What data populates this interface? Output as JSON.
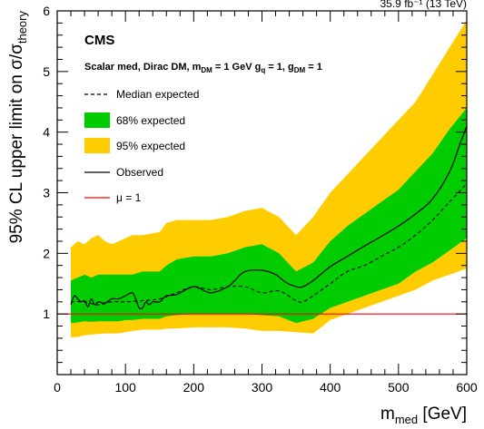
{
  "header_right": "35.9 fb⁻¹ (13 TeV)",
  "chart_data": {
    "type": "line",
    "title": "CMS",
    "subtitle": {
      "p1": "Scalar med, Dirac DM, m",
      "p1_sub": "DM",
      "p2": " = 1 GeV g",
      "p2_sub": "q",
      "p3": " = 1, g",
      "p3_sub": "DM",
      "p4": " = 1"
    },
    "xlabel": {
      "main": "m",
      "sub": "med",
      "unit": " [GeV]"
    },
    "ylabel": {
      "main": "95%  CL upper limit on σ/σ",
      "sub": "theory"
    },
    "xlim": [
      0,
      600
    ],
    "ylim": [
      0,
      6
    ],
    "xticks": [
      0,
      100,
      200,
      300,
      400,
      500,
      600
    ],
    "yticks": [
      1,
      2,
      3,
      4,
      5,
      6
    ],
    "grid": false,
    "legend_position": "top-left",
    "legend": [
      {
        "label": "Median expected",
        "style": "dashed-line"
      },
      {
        "label": "68% expected",
        "style": "fill",
        "color": "#00cc00"
      },
      {
        "label": "95% expected",
        "style": "fill",
        "color": "#ffcc00"
      },
      {
        "label": "Observed",
        "style": "solid-line"
      },
      {
        "label": "μ = 1",
        "style": "line",
        "color": "#ff0000"
      }
    ],
    "series": [
      {
        "name": "95% expected",
        "x": [
          20,
          30,
          40,
          50,
          60,
          70,
          80,
          90,
          100,
          110,
          125,
          150,
          160,
          175,
          200,
          225,
          250,
          275,
          300,
          325,
          350,
          375,
          400,
          425,
          450,
          475,
          500,
          525,
          550,
          575,
          600
        ],
        "lower": [
          0.62,
          0.62,
          0.65,
          0.66,
          0.67,
          0.68,
          0.68,
          0.68,
          0.7,
          0.72,
          0.74,
          0.74,
          0.76,
          0.76,
          0.78,
          0.78,
          0.78,
          0.76,
          0.72,
          0.72,
          0.7,
          0.68,
          0.9,
          1.0,
          1.1,
          1.2,
          1.3,
          1.4,
          1.55,
          1.65,
          1.75
        ],
        "upper": [
          2.1,
          2.2,
          2.15,
          2.25,
          2.3,
          2.2,
          2.15,
          2.2,
          2.25,
          2.3,
          2.3,
          2.35,
          2.5,
          2.55,
          2.55,
          2.55,
          2.6,
          2.7,
          2.75,
          2.6,
          2.3,
          2.6,
          3.0,
          3.3,
          3.6,
          3.9,
          4.2,
          4.5,
          4.95,
          5.4,
          5.85
        ]
      },
      {
        "name": "68% expected",
        "x": [
          20,
          30,
          40,
          50,
          60,
          70,
          80,
          90,
          100,
          110,
          125,
          150,
          160,
          175,
          200,
          225,
          250,
          275,
          300,
          325,
          350,
          375,
          400,
          425,
          450,
          475,
          500,
          525,
          550,
          575,
          600
        ],
        "lower": [
          0.85,
          0.86,
          0.88,
          0.87,
          0.88,
          0.88,
          0.88,
          0.88,
          0.9,
          0.9,
          0.92,
          0.92,
          0.96,
          0.98,
          1.0,
          1.0,
          1.0,
          1.0,
          0.98,
          0.96,
          0.85,
          0.92,
          1.1,
          1.2,
          1.3,
          1.4,
          1.5,
          1.7,
          1.85,
          2.05,
          2.25
        ],
        "upper": [
          1.55,
          1.6,
          1.65,
          1.6,
          1.65,
          1.65,
          1.65,
          1.65,
          1.65,
          1.65,
          1.7,
          1.7,
          1.8,
          1.9,
          1.95,
          1.95,
          2.0,
          2.1,
          2.15,
          2.0,
          1.7,
          1.85,
          2.2,
          2.45,
          2.65,
          2.85,
          3.05,
          3.35,
          3.65,
          4.05,
          4.4
        ]
      },
      {
        "name": "Median expected",
        "x": [
          20,
          40,
          60,
          80,
          100,
          125,
          150,
          175,
          200,
          225,
          250,
          275,
          300,
          325,
          350,
          360,
          375,
          400,
          425,
          450,
          475,
          500,
          525,
          550,
          575,
          600
        ],
        "y": [
          1.2,
          1.2,
          1.15,
          1.2,
          1.2,
          1.22,
          1.25,
          1.35,
          1.45,
          1.4,
          1.45,
          1.45,
          1.35,
          1.38,
          1.22,
          1.2,
          1.3,
          1.5,
          1.7,
          1.8,
          1.95,
          2.1,
          2.3,
          2.55,
          2.85,
          3.15
        ]
      },
      {
        "name": "Observed",
        "x": [
          20,
          25,
          30,
          35,
          40,
          45,
          50,
          55,
          60,
          70,
          80,
          90,
          100,
          110,
          115,
          120,
          125,
          130,
          135,
          140,
          150,
          160,
          175,
          200,
          225,
          250,
          260,
          275,
          300,
          320,
          335,
          350,
          360,
          375,
          400,
          425,
          450,
          475,
          500,
          525,
          550,
          575,
          590,
          600
        ],
        "y": [
          1.15,
          1.3,
          1.25,
          1.2,
          1.22,
          1.12,
          1.25,
          1.15,
          1.2,
          1.18,
          1.25,
          1.25,
          1.3,
          1.35,
          1.25,
          1.1,
          1.1,
          1.2,
          1.15,
          1.2,
          1.2,
          1.3,
          1.32,
          1.45,
          1.35,
          1.45,
          1.55,
          1.7,
          1.72,
          1.65,
          1.52,
          1.45,
          1.45,
          1.55,
          1.78,
          1.95,
          2.12,
          2.28,
          2.45,
          2.65,
          2.9,
          3.35,
          3.8,
          4.1
        ]
      },
      {
        "name": "μ = 1",
        "x": [
          0,
          600
        ],
        "y": [
          1,
          1
        ]
      }
    ]
  },
  "colors": {
    "band95": "#ffcc00",
    "band68": "#00cc00",
    "mu_line": "#ff0000",
    "axis": "#000000"
  }
}
